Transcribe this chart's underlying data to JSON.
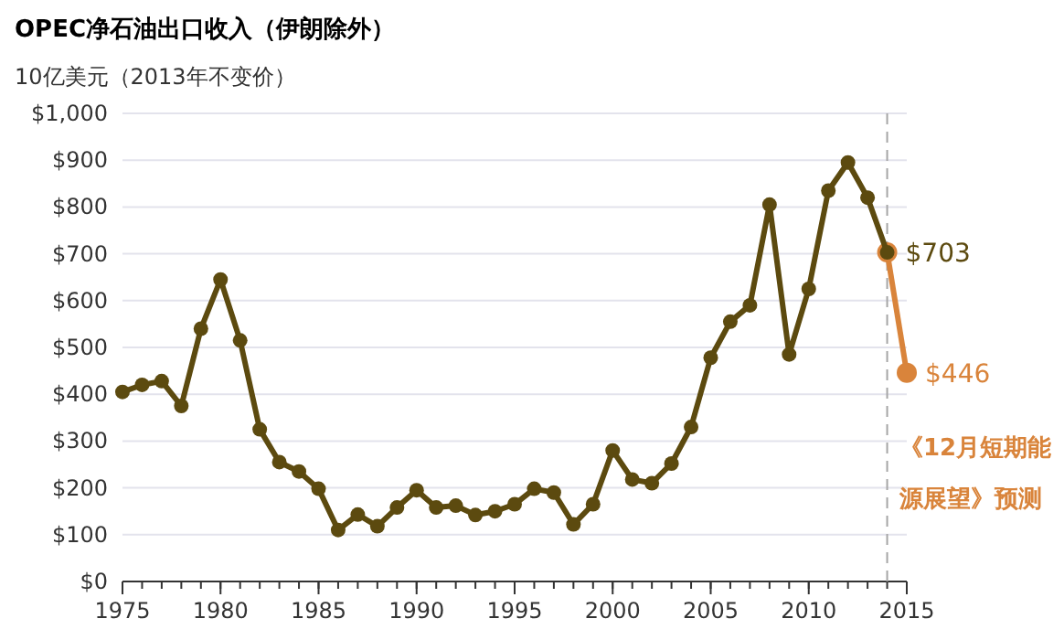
{
  "chart_data": {
    "type": "line",
    "title": "OPEC净石油出口收入（伊朗除外）",
    "ylabel": "10亿美元（2013年不变价）",
    "x": [
      1975,
      1976,
      1977,
      1978,
      1979,
      1980,
      1981,
      1982,
      1983,
      1984,
      1985,
      1986,
      1987,
      1988,
      1989,
      1990,
      1991,
      1992,
      1993,
      1994,
      1995,
      1996,
      1997,
      1998,
      1999,
      2000,
      2001,
      2002,
      2003,
      2004,
      2005,
      2006,
      2007,
      2008,
      2009,
      2010,
      2011,
      2012,
      2013,
      2014
    ],
    "series": [
      {
        "color": "#5c4a0f",
        "values": [
          405,
          420,
          428,
          375,
          540,
          645,
          515,
          325,
          255,
          235,
          198,
          110,
          143,
          118,
          158,
          195,
          158,
          162,
          142,
          150,
          165,
          198,
          190,
          122,
          165,
          280,
          218,
          210,
          252,
          330,
          478,
          555,
          590,
          805,
          485,
          625,
          835,
          895,
          820,
          703
        ],
        "value_labels": [
          null,
          null,
          null,
          null,
          null,
          null,
          null,
          null,
          null,
          null,
          null,
          null,
          null,
          null,
          null,
          null,
          null,
          null,
          null,
          null,
          null,
          null,
          null,
          null,
          null,
          null,
          null,
          null,
          null,
          null,
          null,
          null,
          null,
          null,
          null,
          null,
          null,
          null,
          null,
          "$703"
        ]
      },
      {
        "color": "#d9843b",
        "x": [
          2014,
          2015
        ],
        "values": [
          703,
          446
        ],
        "value_labels": [
          null,
          "$446"
        ]
      }
    ],
    "xlim": [
      1975,
      2015
    ],
    "xticks": [
      1975,
      1980,
      1985,
      1990,
      1995,
      2000,
      2005,
      2010,
      2015
    ],
    "ylim": [
      0,
      1000
    ],
    "yticks": [
      {
        "value": 0,
        "label": "$0"
      },
      {
        "value": 100,
        "label": "$100"
      },
      {
        "value": 200,
        "label": "$200"
      },
      {
        "value": 300,
        "label": "$300"
      },
      {
        "value": 400,
        "label": "$400"
      },
      {
        "value": 500,
        "label": "$500"
      },
      {
        "value": 600,
        "label": "$600"
      },
      {
        "value": 700,
        "label": "$700"
      },
      {
        "value": 800,
        "label": "$800"
      },
      {
        "value": 900,
        "label": "$900"
      },
      {
        "value": 1000,
        "label": "$1,000"
      }
    ],
    "grid": "y",
    "marker": "circle",
    "line_style": "solid",
    "ref_lines": [
      {
        "axis": "x",
        "value": 2014,
        "color": "#a6a6a6",
        "line_style": "dashed"
      }
    ],
    "annotations": [
      {
        "text": "《12月短期能源展望》预测",
        "x": 2015,
        "y": 446
      }
    ]
  }
}
